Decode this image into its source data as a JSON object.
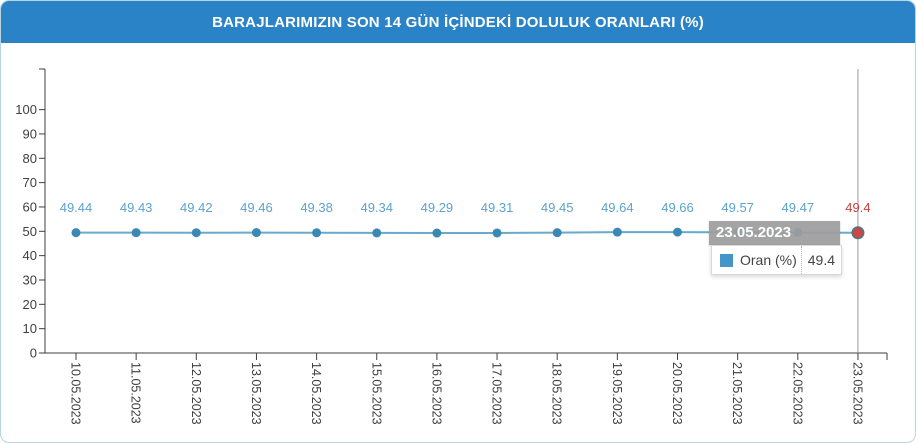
{
  "header": {
    "title": "BARAJLARIMIZIN SON 14 GÜN İÇİNDEKİ DOLULUK ORANLARI (%)"
  },
  "tooltip": {
    "date": "23.05.2023",
    "series_label": "Oran (%)",
    "value": "49.4",
    "legend_icon": "series-color-swatch"
  },
  "colors": {
    "header_bg": "#2a83c6",
    "line": "#68aacb",
    "point": "#3a89b2",
    "point_label": "#5da2cd",
    "highlight_label": "#c7423e",
    "highlight_point_fill": "#d8433e",
    "highlight_point_stroke": "#5d6f7b",
    "axis": "#3f3f3f",
    "tick_text": "#3f3f3f",
    "crosshair": "#9a9a9a",
    "tooltip_header_bg": "rgba(157,157,157,0.93)",
    "legend_square": "#4596c8"
  },
  "chart_data": {
    "type": "line",
    "title": "BARAJLARIMIZIN SON 14 GÜN İÇİNDEKİ DOLULUK ORANLARI (%)",
    "categories": [
      "10.05.2023",
      "11.05.2023",
      "12.05.2023",
      "13.05.2023",
      "14.05.2023",
      "15.05.2023",
      "16.05.2023",
      "17.05.2023",
      "18.05.2023",
      "19.05.2023",
      "20.05.2023",
      "21.05.2023",
      "22.05.2023",
      "23.05.2023"
    ],
    "series": [
      {
        "name": "Oran (%)",
        "values": [
          49.44,
          49.43,
          49.42,
          49.46,
          49.38,
          49.34,
          49.29,
          49.31,
          49.45,
          49.64,
          49.66,
          49.57,
          49.47,
          49.4
        ]
      }
    ],
    "point_labels": [
      "49.44",
      "49.43",
      "49.42",
      "49.46",
      "49.38",
      "49.34",
      "49.29",
      "49.31",
      "49.45",
      "49.64",
      "49.66",
      "49.57",
      "49.47",
      "49.4"
    ],
    "xlabel": "",
    "ylabel": "",
    "yticks": [
      0,
      10,
      20,
      30,
      40,
      50,
      60,
      70,
      80,
      90,
      100
    ],
    "ylim": [
      0,
      116
    ],
    "grid": false,
    "legend_position": "tooltip",
    "highlighted_index": 13,
    "crosshair_on_highlight": true
  }
}
